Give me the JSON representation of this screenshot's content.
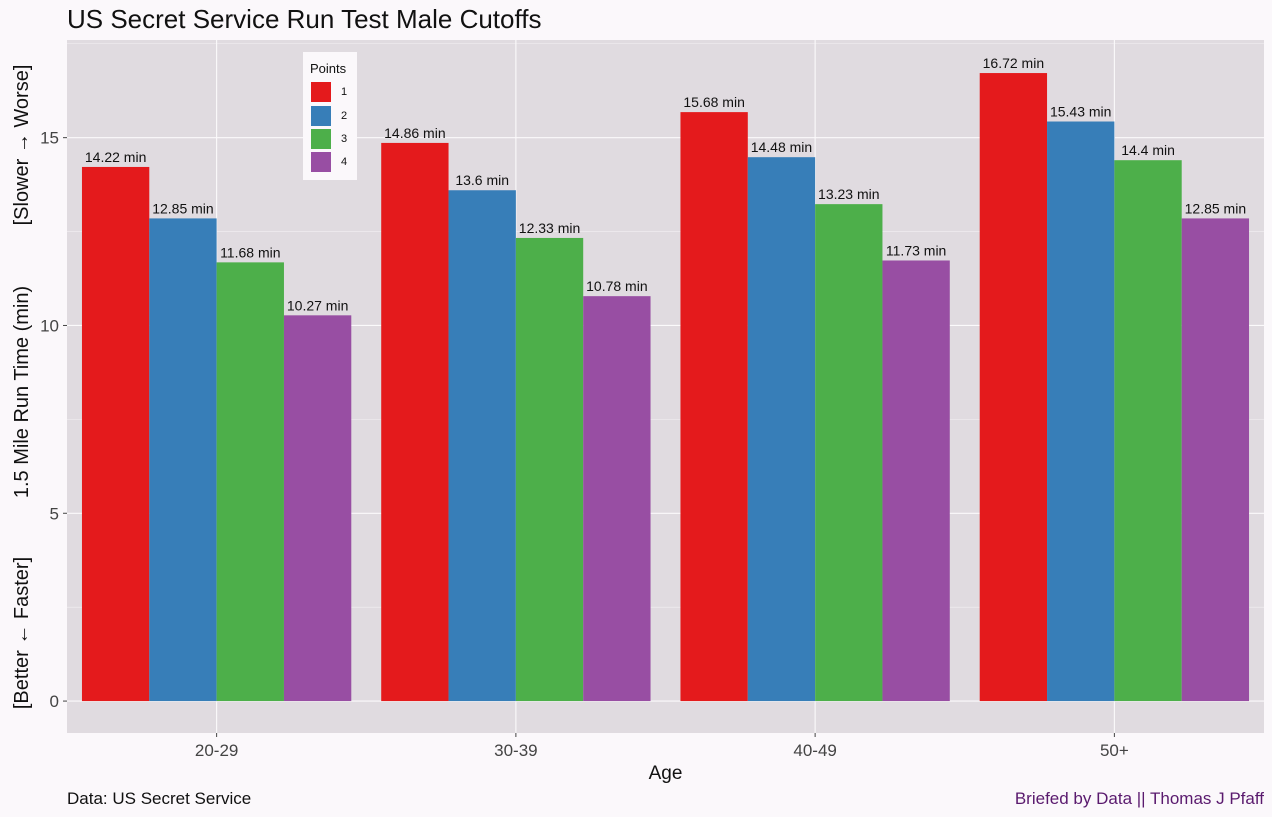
{
  "title": "US Secret Service Run Test Male Cutoffs",
  "caption_left": "Data: US Secret Service",
  "caption_right": "Briefed by Data || Thomas J Pfaff",
  "chart_data": {
    "type": "bar",
    "title": "US Secret Service Run Test Male Cutoffs",
    "xlabel": "Age",
    "ylabel": "1.5 Mile Run Time (min)",
    "ylabel_top": "[Slower → Worse]",
    "ylabel_bottom": "[Better ← Faster]",
    "ylim": [
      -0.85,
      17.6
    ],
    "yticks": [
      0,
      5,
      10,
      15
    ],
    "grid": true,
    "legend_title": "Points",
    "legend_position": "top-left",
    "categories": [
      "20-29",
      "30-39",
      "40-49",
      "50+"
    ],
    "series": [
      {
        "name": "1",
        "color": "#e41a1c",
        "values": [
          14.22,
          14.86,
          15.68,
          16.72
        ],
        "labels": [
          "14.22 min",
          "14.86 min",
          "15.68 min",
          "16.72 min"
        ]
      },
      {
        "name": "2",
        "color": "#377eb8",
        "values": [
          12.85,
          13.6,
          14.48,
          15.43
        ],
        "labels": [
          "12.85 min",
          "13.6 min",
          "14.48 min",
          "15.43 min"
        ]
      },
      {
        "name": "3",
        "color": "#4daf4a",
        "values": [
          11.68,
          12.33,
          13.23,
          14.4
        ],
        "labels": [
          "11.68 min",
          "12.33 min",
          "13.23 min",
          "14.4 min"
        ]
      },
      {
        "name": "4",
        "color": "#984ea3",
        "values": [
          10.27,
          10.78,
          11.73,
          12.85
        ],
        "labels": [
          "10.27 min",
          "10.78 min",
          "11.73 min",
          "12.85 min"
        ]
      }
    ]
  }
}
